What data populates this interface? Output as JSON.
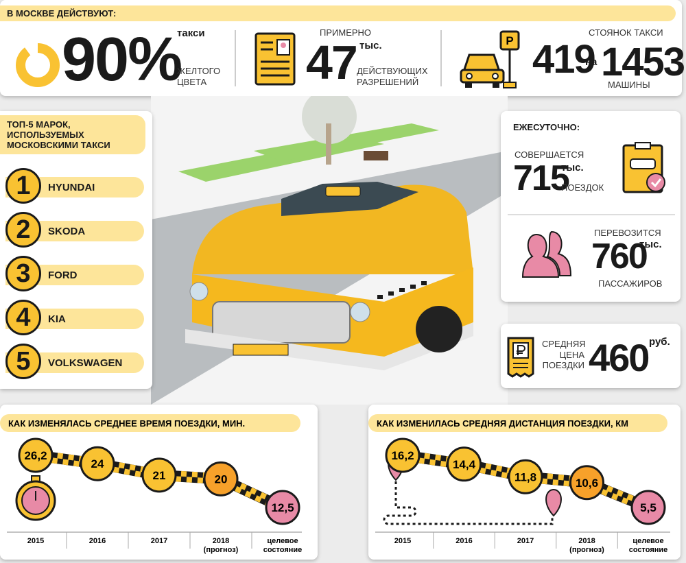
{
  "top": {
    "title": "В МОСКВЕ ДЕЙСТВУЮТ:",
    "yellow": {
      "value": "90%",
      "unit": "такси",
      "caption": [
        "ЖЕЛТОГО",
        "ЦВЕТА"
      ]
    },
    "permits": {
      "pre": "ПРИМЕРНО",
      "value": "47",
      "unit": "тыс.",
      "caption": [
        "ДЕЙСТВУЮЩИХ",
        "РАЗРЕШЕНИЙ"
      ]
    },
    "parking": {
      "value": "419",
      "caption_top": "СТОЯНОК ТАКСИ",
      "mid": "на",
      "value2": "1453",
      "caption": "МАШИНЫ"
    }
  },
  "brands": {
    "title": [
      "ТОП-5 МАРОК,",
      "ИСПОЛЬЗУЕМЫХ",
      "МОСКОВСКИМИ ТАКСИ"
    ],
    "items": [
      {
        "rank": "1",
        "name": "HYUNDAI"
      },
      {
        "rank": "2",
        "name": "SKODA"
      },
      {
        "rank": "3",
        "name": "FORD"
      },
      {
        "rank": "4",
        "name": "KIA"
      },
      {
        "rank": "5",
        "name": "VOLKSWAGEN"
      }
    ]
  },
  "daily": {
    "title": "ЕЖЕСУТОЧНО:",
    "trips": {
      "pre": "СОВЕРШАЕТСЯ",
      "value": "715",
      "unit": "тыс.",
      "caption": "ПОЕЗДОК"
    },
    "passengers": {
      "pre": "ПЕРЕВОЗИТСЯ",
      "value": "760",
      "unit": "тыс.",
      "caption": "ПАССАЖИРОВ"
    }
  },
  "price": {
    "caption": [
      "СРЕДНЯЯ",
      "ЦЕНА",
      "ПОЕЗДКИ"
    ],
    "value": "460",
    "unit": "руб."
  },
  "time_chart": {
    "title": "КАК ИЗМЕНЯЛАСЬ СРЕДНЕЕ ВРЕМЯ ПОЕЗДКИ, МИН.",
    "categories": [
      [
        "2015"
      ],
      [
        "2016"
      ],
      [
        "2017"
      ],
      [
        "2018",
        "(прогноз)"
      ],
      [
        "целевое",
        "состояние"
      ]
    ],
    "values": [
      26.2,
      24,
      21,
      20,
      12.5
    ],
    "value_labels": [
      "26,2",
      "24",
      "21",
      "20",
      "12,5"
    ],
    "colors": [
      "#f9c232",
      "#f9c232",
      "#f9c232",
      "#f7a12a",
      "#e88aa6"
    ]
  },
  "distance_chart": {
    "title": "КАК ИЗМЕНИЛАСЬ СРЕДНЯЯ ДИСТАНЦИЯ ПОЕЗДКИ, КМ",
    "categories": [
      [
        "2015"
      ],
      [
        "2016"
      ],
      [
        "2017"
      ],
      [
        "2018",
        "(прогноз)"
      ],
      [
        "целевое",
        "состояние"
      ]
    ],
    "values": [
      16.2,
      14.4,
      11.8,
      10.6,
      5.5
    ],
    "value_labels": [
      "16,2",
      "14,4",
      "11,8",
      "10,6",
      "5,5"
    ],
    "colors": [
      "#f9c232",
      "#f9c232",
      "#f9c232",
      "#f7a12a",
      "#e88aa6"
    ]
  }
}
